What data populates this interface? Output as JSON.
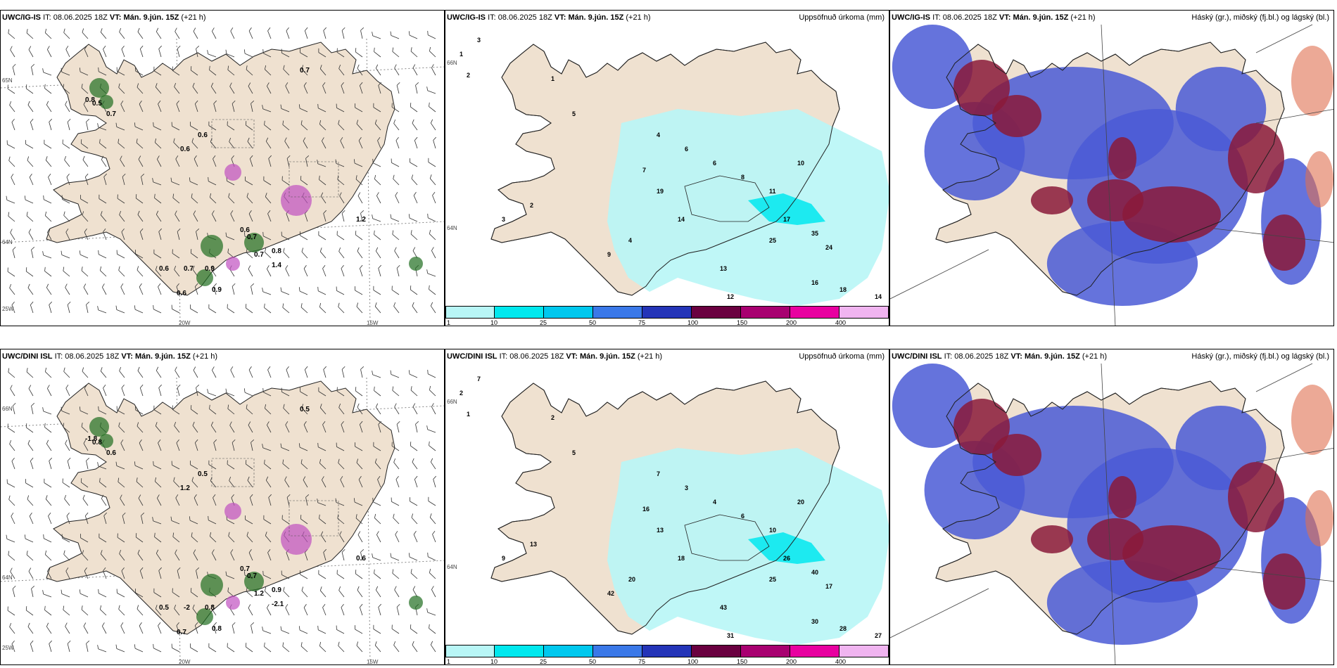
{
  "rows": [
    {
      "wind": {
        "model": "UWC/IG-IS",
        "it_label": "IT:",
        "it_value": "08.06.2025 18Z",
        "vt_label": "VT:",
        "vt_value": "Mán. 9.jún. 15Z",
        "lead": "(+21 h)",
        "labels": [
          "0.7",
          "0.6",
          "0.5",
          "0.8",
          "0.7",
          "0.6",
          "0.6",
          "0.7",
          "0.7",
          "0.9",
          "0.8",
          "0.7",
          "0.6",
          "1.2",
          "1.4",
          "0.6",
          "0.9"
        ],
        "coords": {
          "lon1": "20W",
          "lon2": "15W",
          "lat1": "65N",
          "lat2": "64N",
          "lat3": "25W"
        }
      },
      "precip": {
        "model": "UWC/IG-IS",
        "it_label": "IT:",
        "it_value": "08.06.2025 18Z",
        "vt_label": "VT:",
        "vt_value": "Mán. 9.jún. 15Z",
        "lead": "(+21 h)",
        "right_title": "Uppsöfnuð úrkoma (mm)",
        "labels": [
          "3",
          "1",
          "2",
          "1",
          "5",
          "4",
          "6",
          "6",
          "8",
          "11",
          "10",
          "7",
          "19",
          "14",
          "17",
          "35",
          "24",
          "25",
          "13",
          "16",
          "18",
          "14",
          "12",
          "9",
          "4",
          "2",
          "3"
        ],
        "coords": {
          "lat1": "66N",
          "lat2": "64N"
        }
      },
      "cloud": {
        "model": "UWC/IG-IS",
        "it_label": "IT:",
        "it_value": "08.06.2025 18Z",
        "vt_label": "VT:",
        "vt_value": "Mán. 9.jún. 15Z",
        "lead": "(+21 h)",
        "right_title": "Háský (gr.), miðský (fj.bl.) og lágský (bl.)"
      }
    },
    {
      "wind": {
        "model": "UWC/DINI ISL",
        "it_label": "IT:",
        "it_value": "08.06.2025 18Z",
        "vt_label": "VT:",
        "vt_value": "Mán. 9.jún. 15Z",
        "lead": "(+21 h)",
        "labels": [
          "0.5",
          "1.2",
          "0.8",
          "-1.8",
          "0.6",
          "0.5",
          "0.7",
          "0.7",
          "-2",
          "0.8",
          "0.9",
          "1.2",
          "0.5",
          "0.6",
          "-2.1",
          "0.7",
          "0.8"
        ],
        "coords": {
          "lon1": "20W",
          "lon2": "15W",
          "lat1": "66N",
          "lat2": "64N",
          "lat3": "25W"
        }
      },
      "precip": {
        "model": "UWC/DINI ISL",
        "it_label": "IT:",
        "it_value": "08.06.2025 18Z",
        "vt_label": "VT:",
        "vt_value": "Mán. 9.jún. 15Z",
        "lead": "(+21 h)",
        "right_title": "Uppsöfnuð úrkoma (mm)",
        "labels": [
          "7",
          "2",
          "1",
          "2",
          "5",
          "7",
          "3",
          "4",
          "6",
          "10",
          "20",
          "16",
          "13",
          "18",
          "26",
          "40",
          "17",
          "25",
          "43",
          "30",
          "28",
          "27",
          "31",
          "42",
          "20",
          "13",
          "9"
        ],
        "coords": {
          "lat1": "66N",
          "lat2": "64N"
        }
      },
      "cloud": {
        "model": "UWC/DINI ISL",
        "it_label": "IT:",
        "it_value": "08.06.2025 18Z",
        "vt_label": "VT:",
        "vt_value": "Mán. 9.jún. 15Z",
        "lead": "(+21 h)",
        "right_title": "Háský (gr.), miðský (fj.bl.) og lágský (bl.)"
      }
    }
  ],
  "colorbar": {
    "ticks": [
      "1",
      "10",
      "25",
      "50",
      "75",
      "100",
      "150",
      "200",
      "400"
    ],
    "colors": [
      "#b8f6f6",
      "#00e8ee",
      "#00c8ee",
      "#3a78e8",
      "#2434b8",
      "#6a0040",
      "#a80070",
      "#e800a0",
      "#f0b4f0"
    ]
  },
  "colors": {
    "land": "#efe1d0",
    "cyan_precip": "#b8f6f6",
    "cyan_strong": "#00e8ee",
    "low_cloud": "#4a5ad6",
    "mid_cloud": "#8a1a3a",
    "high_cloud": "#e07050",
    "green": "#1f6e1f",
    "magenta": "#c050c0"
  }
}
